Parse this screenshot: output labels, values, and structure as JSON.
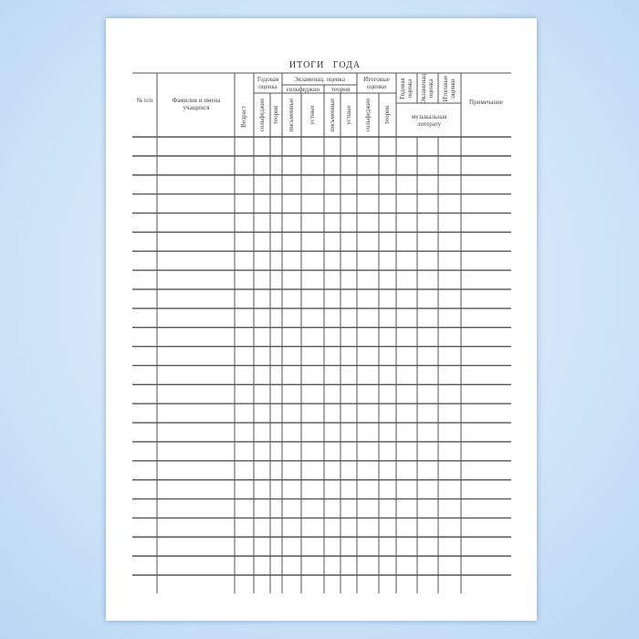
{
  "title": "ИТОГИ ГОДА",
  "headers": {
    "number": "№ п/п",
    "name": "Фамилия и имена учащихся",
    "age": "Возраст",
    "annual": "Годовая оценка",
    "annual_solfeggio": "сольфеджио",
    "annual_theory": "теория",
    "exam": "Экзаменац. оценка",
    "exam_solfeggio": "сольфеджио",
    "exam_theory": "теория",
    "exam_solf_written": "письменные",
    "exam_solf_oral": "устные",
    "exam_theory_written": "письменные",
    "exam_theory_oral": "устные",
    "final": "Итоговые оценки",
    "final_solfeggio": "сольфеджио",
    "final_theory": "теория",
    "ml_annual": "Годовая оценка",
    "ml_exam": "Экзаменац. оценка",
    "ml_final": "Итоговые оценки",
    "music_literature": "музыкальная литерату",
    "note": "Примечание"
  },
  "row_count": 23
}
